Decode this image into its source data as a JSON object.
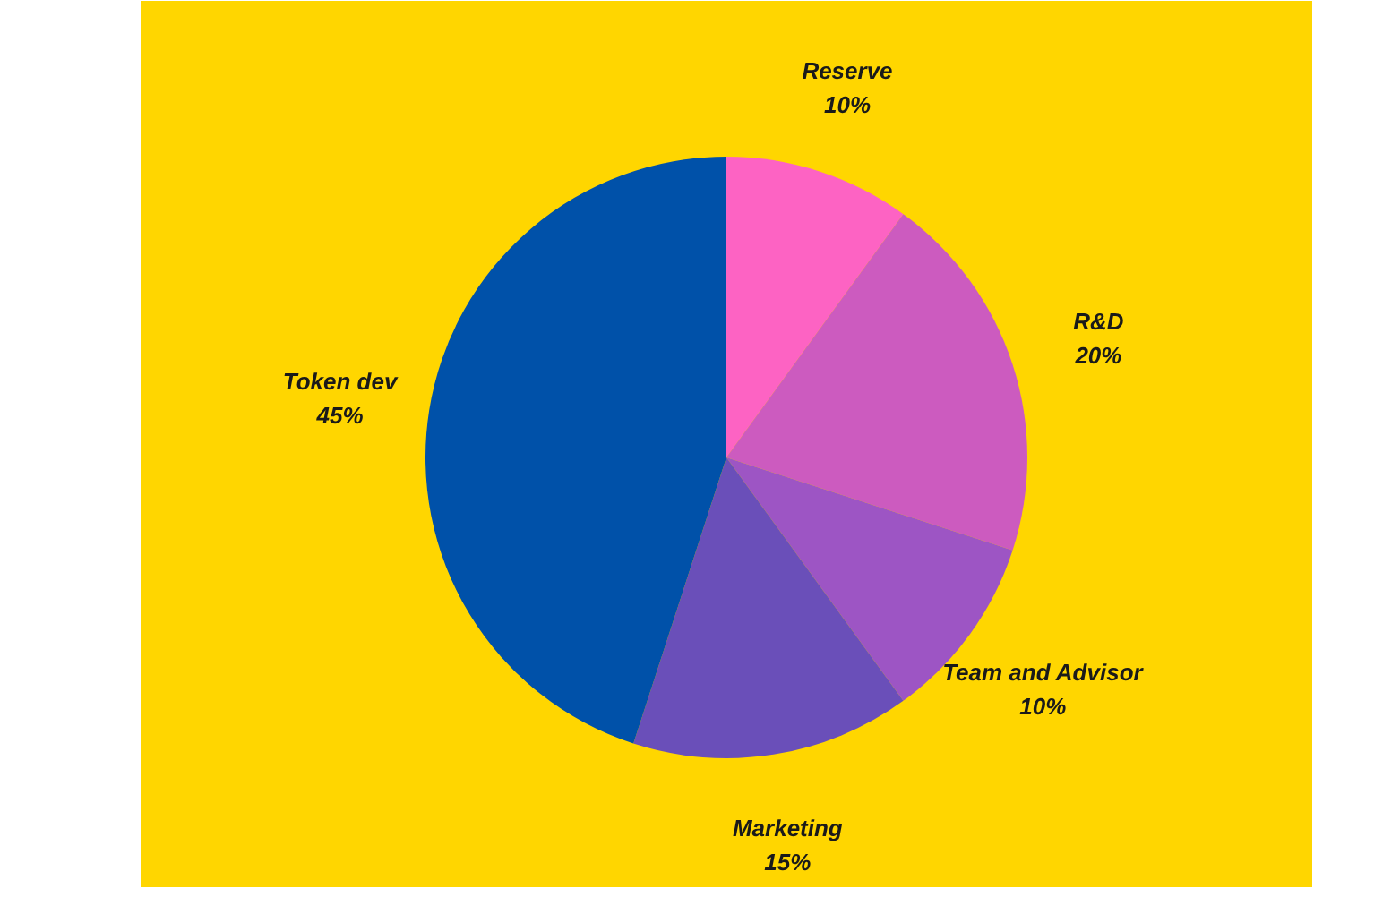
{
  "chart_data": {
    "type": "pie",
    "categories": [
      "Reserve",
      "R&D",
      "Team and Advisor",
      "Marketing",
      "Token dev"
    ],
    "values": [
      10,
      20,
      10,
      15,
      45
    ],
    "colors": [
      "#fd63c3",
      "#cc5bbf",
      "#9d55c4",
      "#6a4fb9",
      "#0051a9"
    ],
    "value_labels": [
      "10%",
      "20%",
      "10%",
      "15%",
      "45%"
    ]
  }
}
